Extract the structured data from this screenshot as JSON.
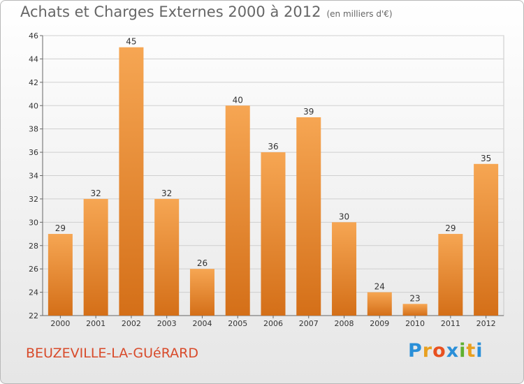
{
  "header": {
    "title": "Achats et Charges Externes 2000 à 2012",
    "unit": "(en milliers d'€)"
  },
  "footer": {
    "town": "BEUZEVILLE-LA-GUéRARD",
    "logo_letters": [
      "P",
      "r",
      "o",
      "x",
      "i",
      "t",
      "i"
    ],
    "logo_colors": [
      "#2a8fd8",
      "#e8a020",
      "#e85020",
      "#2a8fd8",
      "#60b030",
      "#e8a020",
      "#2a8fd8"
    ]
  },
  "chart_data": {
    "type": "bar",
    "title": "Achats et Charges Externes 2000 à 2012",
    "xlabel": "",
    "ylabel": "",
    "categories": [
      "2000",
      "2001",
      "2002",
      "2003",
      "2004",
      "2005",
      "2006",
      "2007",
      "2008",
      "2009",
      "2010",
      "2011",
      "2012"
    ],
    "values": [
      29,
      32,
      45,
      32,
      26,
      40,
      36,
      39,
      30,
      24,
      23,
      29,
      35
    ],
    "ylim": [
      22,
      46
    ],
    "yticks": [
      22,
      24,
      26,
      28,
      30,
      32,
      34,
      36,
      38,
      40,
      42,
      44,
      46
    ],
    "grid": true,
    "bar_color_top": "#f6a653",
    "bar_color_bottom": "#d46f18"
  }
}
